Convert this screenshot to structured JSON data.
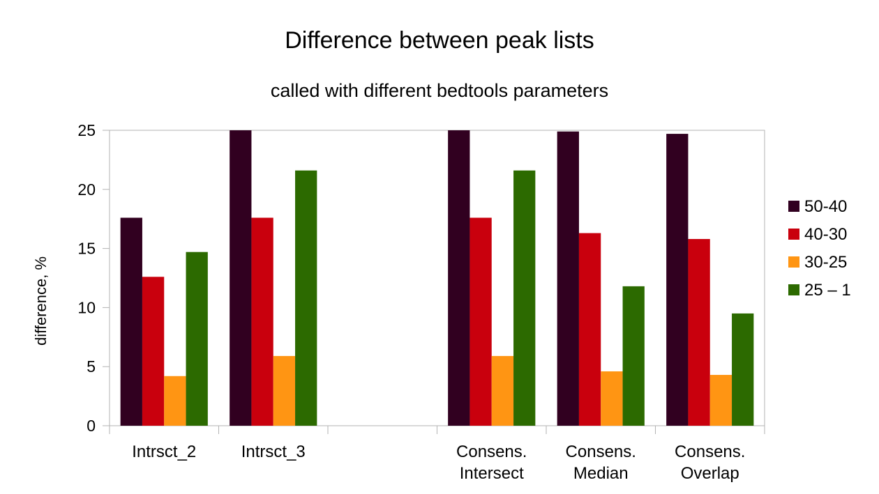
{
  "chart_data": {
    "type": "bar",
    "title": "Difference between peak lists",
    "subtitle": "called with different bedtools parameters",
    "xlabel": "",
    "ylabel": "difference, %",
    "ylim": [
      0,
      25
    ],
    "yticks": [
      0,
      5,
      10,
      15,
      20,
      25
    ],
    "grid": false,
    "legend_position": "right",
    "categories": [
      [
        "Intrsct_2"
      ],
      [
        "Intrsct_3"
      ],
      [
        ""
      ],
      [
        "Consens.",
        "Intersect"
      ],
      [
        "Consens.",
        "Median"
      ],
      [
        "Consens.",
        "Overlap"
      ]
    ],
    "series": [
      {
        "name": "50-40",
        "color": "#310020",
        "values": [
          17.6,
          25.0,
          null,
          25.0,
          24.9,
          24.7
        ]
      },
      {
        "name": "40-30",
        "color": "#c9000d",
        "values": [
          12.6,
          17.6,
          null,
          17.6,
          16.3,
          15.8
        ]
      },
      {
        "name": "30-25",
        "color": "#ff9513",
        "values": [
          4.2,
          5.9,
          null,
          5.9,
          4.6,
          4.3
        ]
      },
      {
        "name": "25 – 1",
        "color": "#2c6a00",
        "values": [
          14.7,
          21.6,
          null,
          21.6,
          11.8,
          9.5
        ]
      }
    ]
  }
}
